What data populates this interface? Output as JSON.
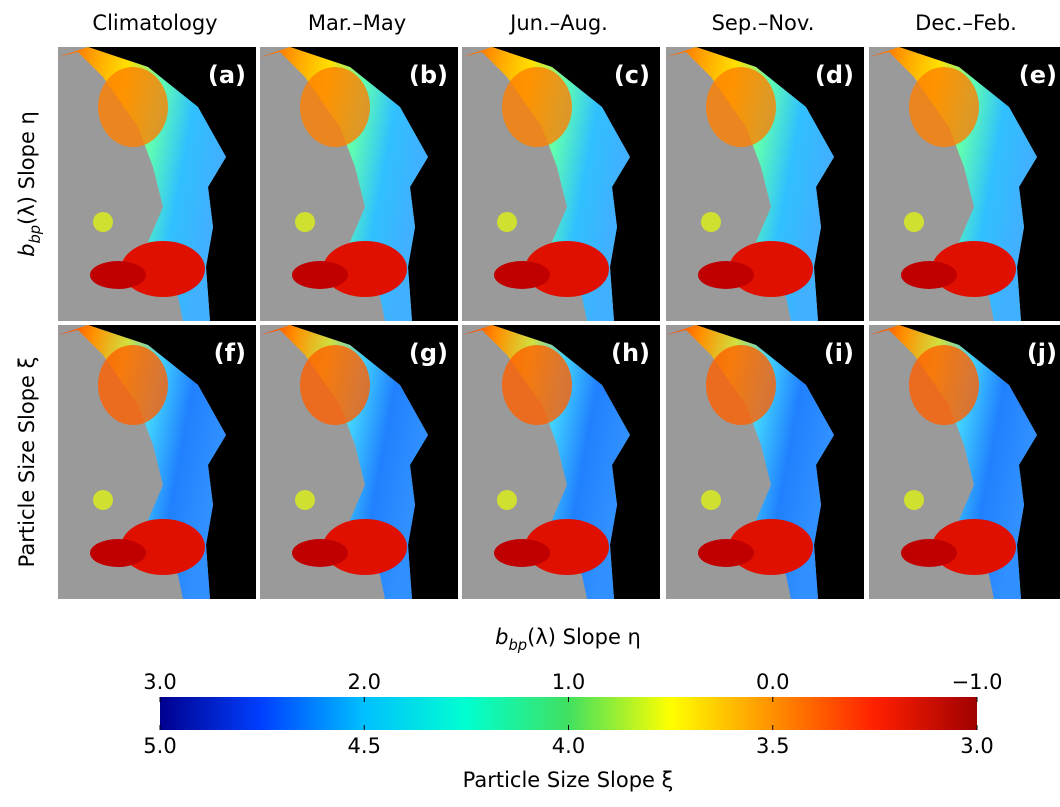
{
  "columns": [
    "Climatology",
    "Mar.–May",
    "Jun.–Aug.",
    "Sep.–Nov.",
    "Dec.–Feb."
  ],
  "rows": [
    {
      "label": {
        "symbol": "b",
        "subscript": "bp",
        "rest": "(λ) Slope η"
      },
      "panels": [
        "(a)",
        "(b)",
        "(c)",
        "(d)",
        "(e)"
      ]
    },
    {
      "label": "Particle Size Slope ξ",
      "panels": [
        "(f)",
        "(g)",
        "(h)",
        "(i)",
        "(j)"
      ]
    }
  ],
  "colorbar": {
    "top_title": {
      "symbol": "b",
      "subscript": "bp",
      "rest": "(λ) Slope η"
    },
    "top_lim": [
      3,
      -1
    ],
    "top_ticks": [
      {
        "value": 3,
        "label": "3.0"
      },
      {
        "value": 2,
        "label": "2.0"
      },
      {
        "value": 1,
        "label": "1.0"
      },
      {
        "value": 0,
        "label": "0.0"
      },
      {
        "value": -1,
        "label": "−1.0"
      }
    ],
    "bottom_lim": [
      5,
      3
    ],
    "bottom_ticks": [
      {
        "value": 5,
        "label": "5.0"
      },
      {
        "value": 4.5,
        "label": "4.5"
      },
      {
        "value": 4,
        "label": "4.0"
      },
      {
        "value": 3.5,
        "label": "3.5"
      },
      {
        "value": 3,
        "label": "3.0"
      }
    ],
    "bottom_title": "Particle Size Slope ξ",
    "colors": [
      "#00008f",
      "#0040ff",
      "#00c0ff",
      "#00ffd0",
      "#40e060",
      "#ffff00",
      "#ff9000",
      "#ff2000",
      "#a00000"
    ]
  }
}
